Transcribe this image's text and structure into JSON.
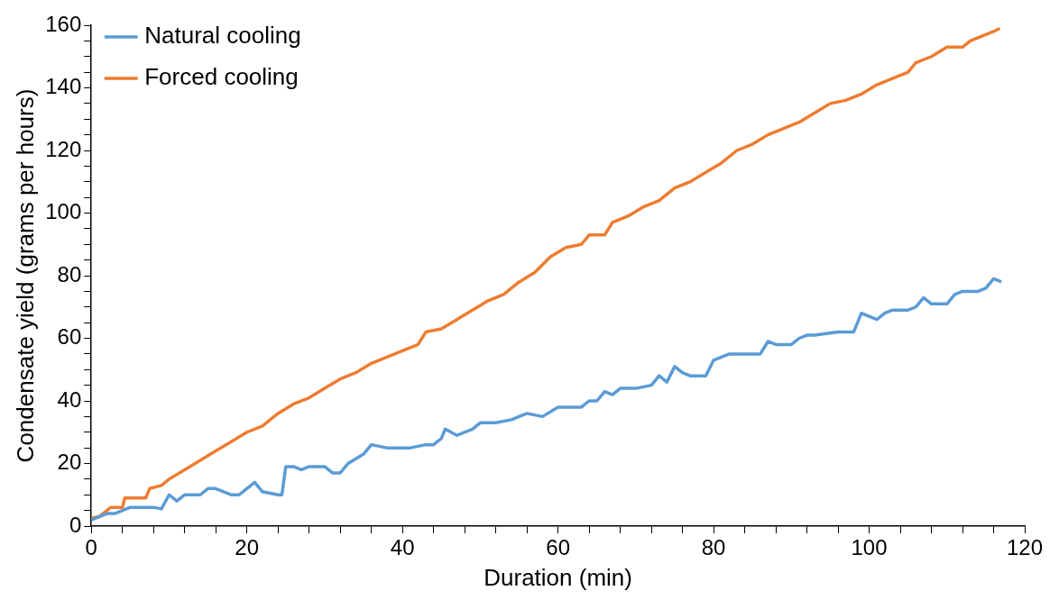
{
  "chart_data": {
    "type": "line",
    "xlabel": "Duration (min)",
    "ylabel": "Condensate yield (grams per hours)",
    "xlim": [
      0,
      120
    ],
    "xticks": [
      0,
      {
        "value": 4,
        "label": null
      },
      {
        "value": 8,
        "label": null
      },
      {
        "value": 12,
        "label": null
      },
      {
        "value": 16,
        "label": null
      },
      20,
      {
        "value": 24,
        "label": null
      },
      {
        "value": 28,
        "label": null
      },
      {
        "value": 32,
        "label": null
      },
      {
        "value": 36,
        "label": null
      },
      40,
      {
        "value": 44,
        "label": null
      },
      {
        "value": 48,
        "label": null
      },
      {
        "value": 52,
        "label": null
      },
      {
        "value": 56,
        "label": null
      },
      60,
      {
        "value": 64,
        "label": null
      },
      {
        "value": 68,
        "label": null
      },
      {
        "value": 72,
        "label": null
      },
      {
        "value": 76,
        "label": null
      },
      80,
      {
        "value": 84,
        "label": null
      },
      {
        "value": 88,
        "label": null
      },
      {
        "value": 92,
        "label": null
      },
      {
        "value": 96,
        "label": null
      },
      100,
      {
        "value": 104,
        "label": null
      },
      {
        "value": 108,
        "label": null
      },
      {
        "value": 112,
        "label": null
      },
      {
        "value": 116,
        "label": null
      },
      120
    ],
    "ylim": [
      0,
      160
    ],
    "yticks": [
      0,
      {
        "value": 5,
        "label": null
      },
      {
        "value": 10,
        "label": null
      },
      {
        "value": 15,
        "label": null
      },
      20,
      {
        "value": 25,
        "label": null
      },
      {
        "value": 30,
        "label": null
      },
      {
        "value": 35,
        "label": null
      },
      40,
      {
        "value": 45,
        "label": null
      },
      {
        "value": 50,
        "label": null
      },
      {
        "value": 55,
        "label": null
      },
      60,
      {
        "value": 65,
        "label": null
      },
      {
        "value": 70,
        "label": null
      },
      {
        "value": 75,
        "label": null
      },
      80,
      {
        "value": 85,
        "label": null
      },
      {
        "value": 90,
        "label": null
      },
      {
        "value": 95,
        "label": null
      },
      100,
      {
        "value": 105,
        "label": null
      },
      {
        "value": 110,
        "label": null
      },
      {
        "value": 115,
        "label": null
      },
      120,
      {
        "value": 125,
        "label": null
      },
      {
        "value": 130,
        "label": null
      },
      {
        "value": 135,
        "label": null
      },
      140,
      {
        "value": 145,
        "label": null
      },
      {
        "value": 150,
        "label": null
      },
      {
        "value": 155,
        "label": null
      },
      160
    ],
    "grid": false,
    "legend": "top left",
    "marker": "none",
    "line_style": "solid",
    "series": [
      {
        "name": "Natural cooling",
        "color": "#5b9bd5",
        "x": [
          0,
          1,
          2,
          3,
          4,
          5,
          6,
          7,
          8,
          9,
          10,
          11,
          11.5,
          12,
          14,
          15,
          16,
          17,
          18,
          19,
          20,
          21,
          22,
          24,
          24.5,
          25,
          26,
          27,
          28,
          30,
          31,
          32,
          33,
          35,
          36,
          38,
          41,
          43,
          44,
          45,
          45.5,
          47,
          49,
          50,
          52,
          54,
          56,
          58,
          60,
          63,
          64,
          65,
          66,
          67,
          68,
          70,
          72,
          73,
          74,
          75,
          76,
          77,
          79,
          80,
          81,
          82,
          86,
          87,
          88,
          90,
          91,
          92,
          93,
          96,
          98,
          99,
          100,
          101,
          102,
          103,
          105,
          106,
          107,
          108,
          110,
          111,
          112,
          114,
          115,
          116,
          117
        ],
        "values": [
          2,
          3,
          4,
          4,
          5,
          6,
          6,
          6,
          6,
          5.5,
          10,
          8,
          9,
          10,
          10,
          12,
          12,
          11,
          10,
          10,
          12,
          14,
          11,
          10,
          10,
          19,
          19,
          18,
          19,
          19,
          17,
          17,
          20,
          23,
          26,
          25,
          25,
          26,
          26,
          28,
          31,
          29,
          31,
          33,
          33,
          34,
          36,
          35,
          38,
          38,
          40,
          40,
          43,
          42,
          44,
          44,
          45,
          48,
          46,
          51,
          49,
          48,
          48,
          53,
          54,
          55,
          55,
          59,
          58,
          58,
          60,
          61,
          61,
          62,
          62,
          68,
          67,
          66,
          68,
          69,
          69,
          70,
          73,
          71,
          71,
          74,
          75,
          75,
          76,
          79,
          78
        ]
      },
      {
        "name": "Forced cooling",
        "color": "#ed7d31",
        "x": [
          0,
          1,
          2,
          2.5,
          4,
          4.3,
          7,
          7.5,
          9,
          10,
          12,
          14,
          16,
          18,
          20,
          22,
          24,
          26,
          28,
          30,
          32,
          34,
          36,
          38,
          40,
          42,
          43,
          45,
          47,
          49,
          51,
          53,
          55,
          57,
          59,
          61,
          63,
          64,
          66,
          67,
          69,
          71,
          73,
          75,
          77,
          79,
          81,
          83,
          85,
          87,
          89,
          91,
          93,
          95,
          97,
          99,
          101,
          103,
          105,
          106,
          108,
          110,
          112,
          113,
          115,
          116,
          116.8
        ],
        "values": [
          2.5,
          3,
          5,
          6,
          6,
          9,
          9,
          12,
          13,
          15,
          18,
          21,
          24,
          27,
          30,
          32,
          36,
          39,
          41,
          44,
          47,
          49,
          52,
          54,
          56,
          58,
          62,
          63,
          66,
          69,
          72,
          74,
          78,
          81,
          86,
          89,
          90,
          93,
          93,
          97,
          99,
          102,
          104,
          108,
          110,
          113,
          116,
          120,
          122,
          125,
          127,
          129,
          132,
          135,
          136,
          138,
          141,
          143,
          145,
          148,
          150,
          153,
          153,
          155,
          157,
          158,
          159
        ]
      }
    ]
  }
}
